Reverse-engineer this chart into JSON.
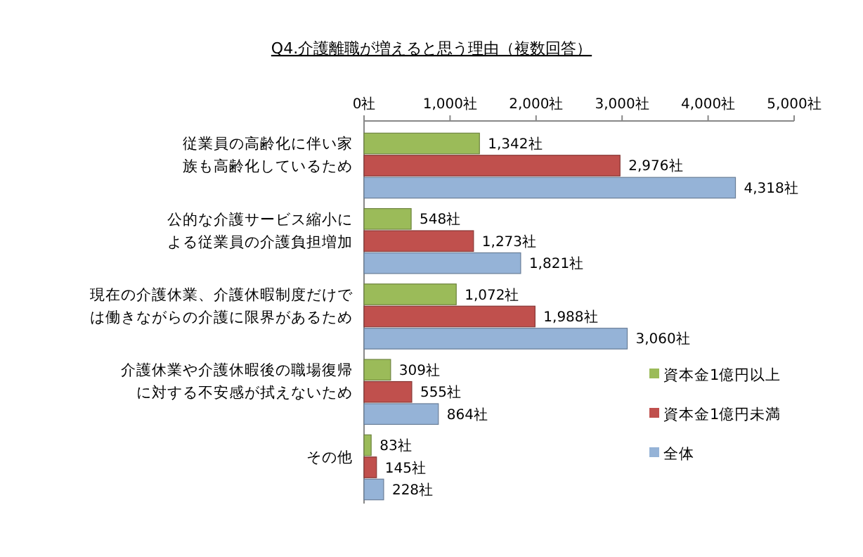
{
  "chart_data": {
    "type": "bar",
    "orientation": "horizontal",
    "title": "Q4.介護離職が増えると思う理由（複数回答）",
    "categories": [
      "従業員の高齢化に伴い家族も高齢化しているため",
      "公的な介護サービス縮小による従業員の介護負担増加",
      "現在の介護休業、介護休暇制度だけでは働きながらの介護に限界があるため",
      "介護休業や介護休暇後の職場復帰に対する不安感が拭えないため",
      "その他"
    ],
    "series": [
      {
        "name": "資本金1億円以上",
        "color": "#9bbb59",
        "values": [
          1342,
          548,
          1072,
          309,
          83
        ],
        "value_labels": [
          "1,342社",
          "548社",
          "1,072社",
          "309社",
          "83社"
        ]
      },
      {
        "name": "資本金1億円未満",
        "color": "#c0504d",
        "values": [
          2976,
          1273,
          1988,
          555,
          145
        ],
        "value_labels": [
          "2,976社",
          "1,273社",
          "1,988社",
          "555社",
          "145社"
        ]
      },
      {
        "name": "全体",
        "color": "#95b3d7",
        "values": [
          4318,
          1821,
          3060,
          864,
          228
        ],
        "value_labels": [
          "4,318社",
          "1,821社",
          "3,060社",
          "864社",
          "228社"
        ]
      }
    ],
    "xlim": [
      0,
      5000
    ],
    "xticks": [
      {
        "value": 0,
        "label": "0社"
      },
      {
        "value": 1000,
        "label": "1,000社"
      },
      {
        "value": 2000,
        "label": "2,000社"
      },
      {
        "value": 3000,
        "label": "3,000社"
      },
      {
        "value": 4000,
        "label": "4,000社"
      },
      {
        "value": 5000,
        "label": "5,000社"
      }
    ],
    "grid": false,
    "legend": "right"
  }
}
